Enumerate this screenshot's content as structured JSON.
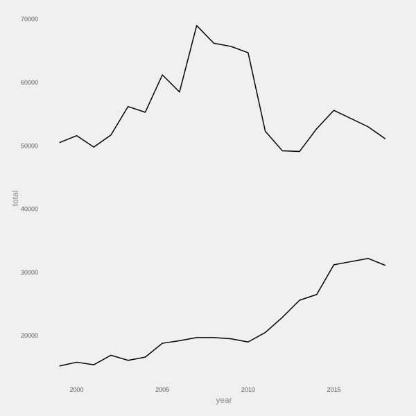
{
  "chart_data": {
    "type": "line",
    "title": "",
    "xlabel": "year",
    "ylabel": "total",
    "xlim": [
      1998.2,
      2018.9
    ],
    "ylim": [
      13000,
      71500
    ],
    "grid": false,
    "x_ticks": [
      2000,
      2005,
      2010,
      2015
    ],
    "x_tick_labels": [
      "2000",
      "2005",
      "2010",
      "2015"
    ],
    "y_ticks": [
      20000,
      30000,
      40000,
      50000,
      60000,
      70000
    ],
    "y_tick_labels": [
      "20000",
      "30000",
      "40000",
      "50000",
      "60000",
      "70000"
    ],
    "x": [
      1999,
      2000,
      2001,
      2002,
      2003,
      2004,
      2005,
      2006,
      2007,
      2008,
      2009,
      2010,
      2011,
      2012,
      2013,
      2014,
      2015,
      2016,
      2017,
      2018
    ],
    "series": [
      {
        "color": "#000000",
        "values": [
          50500,
          51600,
          49800,
          51700,
          56200,
          55300,
          61200,
          58500,
          69000,
          66200,
          65700,
          64700,
          52300,
          49200,
          49100,
          52700,
          55600,
          54300,
          53000,
          51100
        ]
      },
      {
        "color": "#000000",
        "values": [
          15200,
          15800,
          15400,
          16900,
          16100,
          16600,
          18800,
          19200,
          19700,
          19700,
          19500,
          19000,
          20500,
          22900,
          25600,
          26500,
          31200,
          31700,
          32200,
          31100
        ]
      }
    ]
  }
}
